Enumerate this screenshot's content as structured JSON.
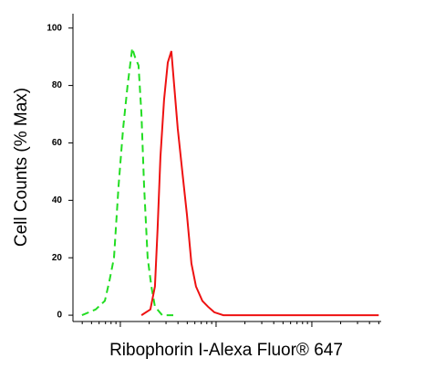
{
  "chart_data": {
    "type": "line",
    "y_label": "Cell Counts (% Max)",
    "x_label": "Ribophorin I-Alexa Fluor® 647",
    "log_x": true,
    "minor_ticks": true,
    "xlim": [
      3.2,
      5300
    ],
    "xticks": [
      10,
      100,
      1000
    ],
    "ylim": [
      -2.2,
      105
    ],
    "yticks": [
      0,
      20,
      40,
      60,
      80,
      100
    ],
    "series": [
      {
        "color": "#22dd22",
        "dashed": true,
        "x": [
          3.98,
          5.53,
          6.89,
          7.69,
          8.58,
          9.57,
          10.7,
          11.9,
          13.3,
          14.2,
          15.5,
          16.6,
          17.7,
          19.3,
          21.1,
          23.0,
          27.4,
          35.7
        ],
        "values": [
          0,
          2,
          5,
          12,
          20,
          45,
          65,
          80,
          93,
          90,
          87,
          70,
          45,
          20,
          10,
          3,
          0,
          0
        ]
      },
      {
        "color": "#ee1111",
        "dashed": false,
        "x": [
          16.6,
          20.6,
          23.0,
          24.5,
          26.2,
          28.6,
          31.3,
          34.1,
          36.5,
          39.8,
          44.4,
          49.6,
          55.3,
          61.7,
          71.9,
          82.1,
          95.7,
          119,
          166,
          400,
          5000
        ],
        "values": [
          0,
          2,
          10,
          30,
          55,
          75,
          88,
          92,
          80,
          65,
          50,
          35,
          18,
          10,
          5,
          3,
          1,
          0,
          0,
          0,
          0
        ]
      }
    ]
  }
}
